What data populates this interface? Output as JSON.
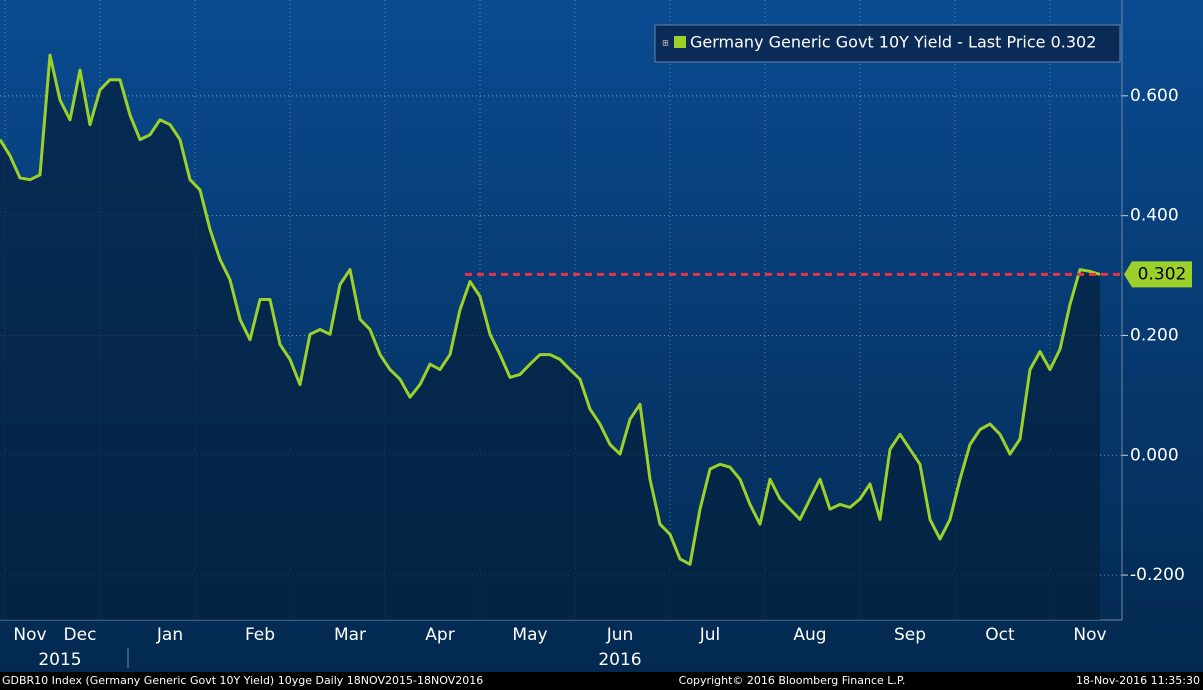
{
  "chart_data": {
    "type": "line",
    "series": [
      {
        "name": "Germany Generic Govt 10Y Yield - Last Price 0.302",
        "color": "#9bd12a",
        "values": [
          0.527,
          0.5,
          0.463,
          0.46,
          0.468,
          0.668,
          0.593,
          0.56,
          0.643,
          0.552,
          0.61,
          0.627,
          0.627,
          0.568,
          0.527,
          0.535,
          0.56,
          0.552,
          0.527,
          0.46,
          0.443,
          0.377,
          0.327,
          0.293,
          0.227,
          0.193,
          0.26,
          0.26,
          0.185,
          0.16,
          0.118,
          0.202,
          0.21,
          0.202,
          0.285,
          0.31,
          0.227,
          0.21,
          0.168,
          0.143,
          0.127,
          0.097,
          0.118,
          0.152,
          0.143,
          0.168,
          0.243,
          0.29,
          0.265,
          0.202,
          0.168,
          0.13,
          0.135,
          0.152,
          0.168,
          0.168,
          0.16,
          0.143,
          0.127,
          0.077,
          0.052,
          0.018,
          0.002,
          0.06,
          0.085,
          -0.04,
          -0.115,
          -0.132,
          -0.173,
          -0.182,
          -0.09,
          -0.023,
          -0.015,
          -0.02,
          -0.04,
          -0.082,
          -0.115,
          -0.04,
          -0.073,
          -0.09,
          -0.107,
          -0.073,
          -0.04,
          -0.09,
          -0.082,
          -0.087,
          -0.073,
          -0.048,
          -0.107,
          0.01,
          0.035,
          0.01,
          -0.015,
          -0.107,
          -0.14,
          -0.107,
          -0.04,
          0.018,
          0.043,
          0.052,
          0.035,
          0.002,
          0.027,
          0.143,
          0.173,
          0.143,
          0.177,
          0.252,
          0.31,
          0.307,
          0.302
        ]
      }
    ],
    "categories": [
      null,
      null,
      null,
      "Nov",
      null,
      null,
      null,
      null,
      "Dec",
      null,
      null,
      null,
      null,
      null,
      null,
      null,
      null,
      "Jan",
      null,
      null,
      null,
      null,
      null,
      null,
      null,
      null,
      "Feb",
      null,
      null,
      null,
      null,
      null,
      null,
      null,
      null,
      "Mar",
      null,
      null,
      null,
      null,
      null,
      null,
      null,
      null,
      "Apr",
      null,
      null,
      null,
      null,
      null,
      null,
      null,
      null,
      "May",
      null,
      null,
      null,
      null,
      null,
      null,
      null,
      null,
      "Jun",
      null,
      null,
      null,
      null,
      null,
      null,
      null,
      null,
      "Jul",
      null,
      null,
      null,
      null,
      null,
      null,
      null,
      null,
      null,
      "Aug",
      null,
      null,
      null,
      null,
      null,
      null,
      null,
      null,
      null,
      "Sep",
      null,
      null,
      null,
      null,
      null,
      null,
      null,
      null,
      "Oct",
      null,
      null,
      null,
      null,
      null,
      null,
      null,
      null,
      "Nov",
      null
    ],
    "year_labels": [
      {
        "label": "2015",
        "index": 6
      },
      {
        "label": "2016",
        "index": 62
      }
    ],
    "ylim": [
      -0.275,
      0.76
    ],
    "yticks": [
      {
        "value": -0.2,
        "label": "-0.200"
      },
      {
        "value": 0,
        "label": "0.000"
      },
      {
        "value": 0.2,
        "label": "0.200"
      },
      {
        "value": 0.4,
        "label": "0.400"
      },
      {
        "value": 0.6,
        "label": "0.600"
      }
    ],
    "grid": true,
    "last_price": {
      "value": 0.302,
      "label": "0.302",
      "color": "#e8344a"
    },
    "footer": {
      "left": "GDBR10 Index (Germany Generic Govt 10Y Yield) 10yge  Daily 18NOV2015-18NOV2016",
      "center": "Copyright© 2016 Bloomberg Finance L.P.",
      "right": "18-Nov-2016 11:35:30"
    }
  }
}
